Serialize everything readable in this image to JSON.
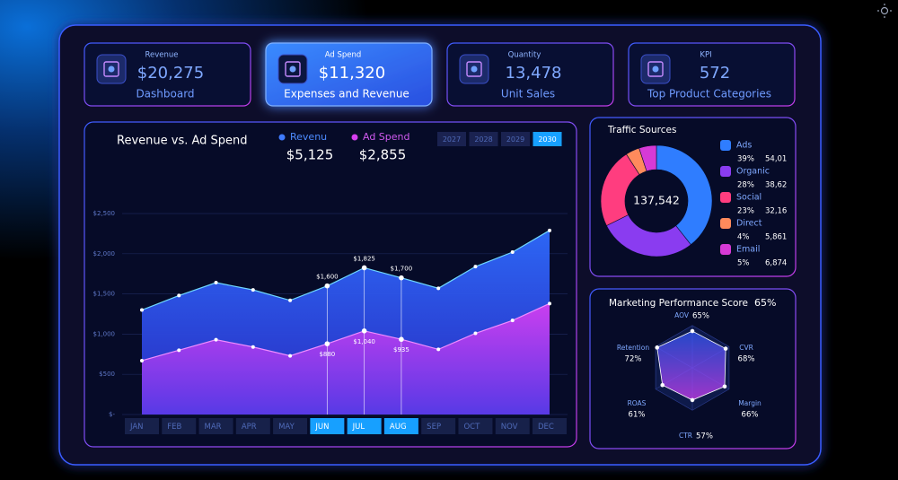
{
  "cards": [
    {
      "label": "Revenue",
      "value": "$20,275",
      "caption": "Dashboard",
      "active": false
    },
    {
      "label": "Ad Spend",
      "value": "$11,320",
      "caption": "Expenses and Revenue",
      "active": true
    },
    {
      "label": "Quantity",
      "value": "13,478",
      "caption": "Unit Sales",
      "active": false
    },
    {
      "label": "KPI",
      "value": "572",
      "caption": "Top Product Categories",
      "active": false
    }
  ],
  "chart_data": [
    {
      "type": "area",
      "title": "Revenue vs. Ad Spend",
      "categories": [
        "JAN",
        "FEB",
        "MAR",
        "APR",
        "MAY",
        "JUN",
        "JUL",
        "AUG",
        "SEP",
        "OCT",
        "NOV",
        "DEC"
      ],
      "series": [
        {
          "name": "Revenu",
          "summary": "$5,125",
          "color": "#3f7bff",
          "values": [
            1300,
            1480,
            1640,
            1550,
            1420,
            1600,
            1825,
            1700,
            1570,
            1840,
            2020,
            2290
          ],
          "value_labels": [
            null,
            null,
            null,
            null,
            null,
            "$1,600",
            "$1,825",
            "$1,700",
            null,
            null,
            null,
            null
          ]
        },
        {
          "name": "Ad Spend",
          "summary": "$2,855",
          "color": "#d63ef0",
          "values": [
            670,
            800,
            930,
            840,
            730,
            880,
            1040,
            935,
            810,
            1010,
            1170,
            1380
          ],
          "value_labels": [
            null,
            null,
            null,
            null,
            null,
            "$880",
            "$1,040",
            "$935",
            null,
            null,
            null,
            null
          ]
        }
      ],
      "ylim": [
        0,
        2500
      ],
      "yticks": [
        {
          "value": 0,
          "label": "$-"
        },
        {
          "value": 500,
          "label": "$500"
        },
        {
          "value": 1000,
          "label": "$1,000"
        },
        {
          "value": 1500,
          "label": "$1,500"
        },
        {
          "value": 2000,
          "label": "$2,000"
        },
        {
          "value": 2500,
          "label": "$2,500"
        }
      ],
      "grid": true,
      "years": [
        "2027",
        "2028",
        "2029",
        "2030"
      ],
      "selected_year": 3,
      "highlighted": [
        5,
        6,
        7
      ]
    },
    {
      "type": "donut",
      "title": "Traffic Sources",
      "center_label": "137,542",
      "categories": [
        "Ads",
        "Organic",
        "Social",
        "Direct",
        "Email"
      ],
      "values": [
        39,
        28,
        23,
        4,
        5
      ],
      "value_labels": [
        "39%",
        "28%",
        "23%",
        "4%",
        "5%"
      ],
      "count_labels": [
        "54,01",
        "38,62",
        "32,16",
        "5,861",
        "6,874"
      ],
      "colors": [
        "#2f7dff",
        "#8a3cf0",
        "#ff3d7f",
        "#ff8a5c",
        "#d63ad6"
      ]
    },
    {
      "type": "radar",
      "title": "Marketing Performance Score",
      "score_label": "65%",
      "categories": [
        "AOV",
        "CVR",
        "Margin",
        "CTR",
        "ROAS",
        "Retention"
      ],
      "values": [
        65,
        68,
        66,
        57,
        61,
        72
      ],
      "value_labels": [
        "65%",
        "68%",
        "66%",
        "57%",
        "61%",
        "72%"
      ],
      "rlim": [
        0,
        100
      ],
      "color": "#3a6bff"
    }
  ]
}
